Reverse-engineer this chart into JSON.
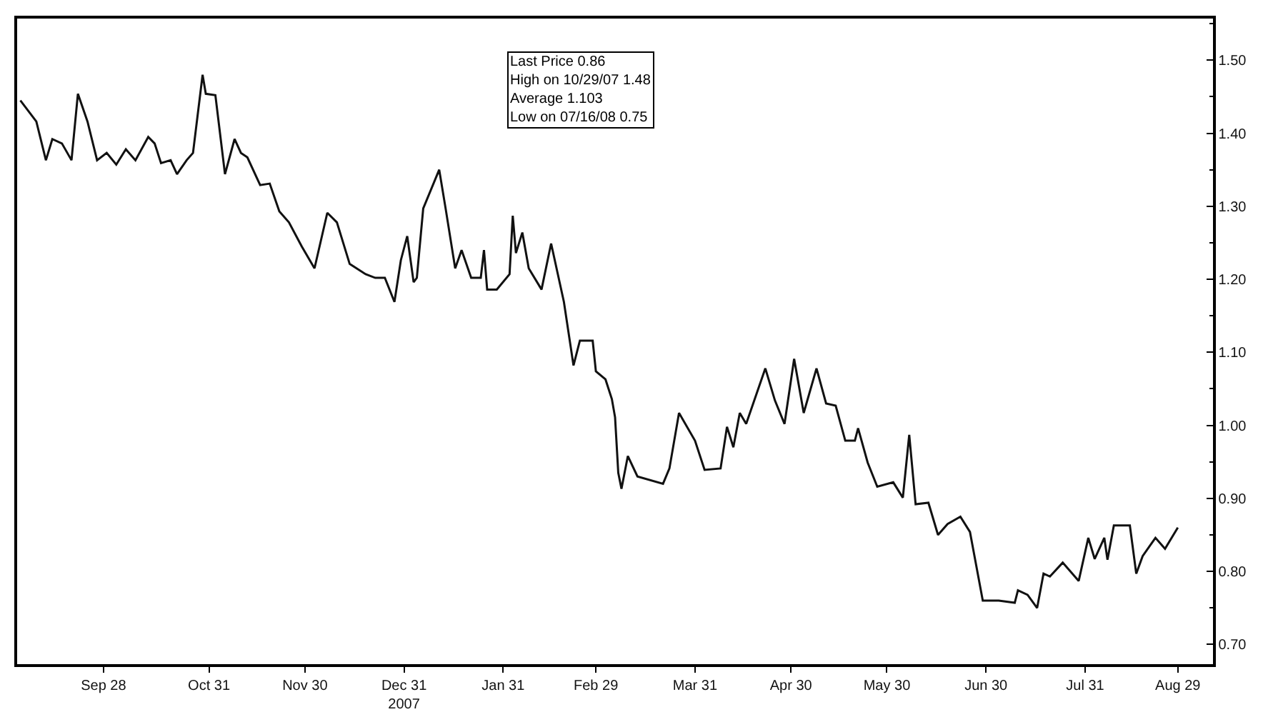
{
  "chart_data": {
    "type": "line",
    "x": [
      "2007-09-02",
      "2007-09-07",
      "2007-09-10",
      "2007-09-12",
      "2007-09-15",
      "2007-09-18",
      "2007-09-20",
      "2007-09-23",
      "2007-09-26",
      "2007-09-29",
      "2007-10-02",
      "2007-10-05",
      "2007-10-08",
      "2007-10-12",
      "2007-10-14",
      "2007-10-16",
      "2007-10-19",
      "2007-10-21",
      "2007-10-24",
      "2007-10-26",
      "2007-10-29",
      "2007-10-30",
      "2007-11-02",
      "2007-11-05",
      "2007-11-08",
      "2007-11-10",
      "2007-11-12",
      "2007-11-16",
      "2007-11-19",
      "2007-11-22",
      "2007-11-25",
      "2007-11-29",
      "2007-12-03",
      "2007-12-07",
      "2007-12-10",
      "2007-12-14",
      "2007-12-19",
      "2007-12-22",
      "2007-12-25",
      "2007-12-28",
      "2007-12-30",
      "2008-01-01",
      "2008-01-03",
      "2008-01-04",
      "2008-01-06",
      "2008-01-11",
      "2008-01-13",
      "2008-01-16",
      "2008-01-18",
      "2008-01-21",
      "2008-01-24",
      "2008-01-25",
      "2008-01-26",
      "2008-01-29",
      "2008-02-02",
      "2008-02-03",
      "2008-02-04",
      "2008-02-06",
      "2008-02-08",
      "2008-02-12",
      "2008-02-15",
      "2008-02-19",
      "2008-02-22",
      "2008-02-24",
      "2008-02-28",
      "2008-02-29",
      "2008-03-03",
      "2008-03-05",
      "2008-03-06",
      "2008-03-07",
      "2008-03-08",
      "2008-03-10",
      "2008-03-13",
      "2008-03-21",
      "2008-03-23",
      "2008-03-26",
      "2008-03-31",
      "2008-04-03",
      "2008-04-08",
      "2008-04-10",
      "2008-04-12",
      "2008-04-14",
      "2008-04-16",
      "2008-04-22",
      "2008-04-25",
      "2008-04-28",
      "2008-05-01",
      "2008-05-04",
      "2008-05-08",
      "2008-05-11",
      "2008-05-14",
      "2008-05-17",
      "2008-05-20",
      "2008-05-21",
      "2008-05-24",
      "2008-05-27",
      "2008-06-01",
      "2008-06-04",
      "2008-06-06",
      "2008-06-08",
      "2008-06-12",
      "2008-06-15",
      "2008-06-18",
      "2008-06-22",
      "2008-06-25",
      "2008-06-29",
      "2008-07-04",
      "2008-07-09",
      "2008-07-10",
      "2008-07-13",
      "2008-07-16",
      "2008-07-18",
      "2008-07-20",
      "2008-07-24",
      "2008-07-29",
      "2008-08-01",
      "2008-08-03",
      "2008-08-06",
      "2008-08-07",
      "2008-08-09",
      "2008-08-14",
      "2008-08-16",
      "2008-08-18",
      "2008-08-22",
      "2008-08-25",
      "2008-08-29"
    ],
    "series": [
      {
        "color": "#111111",
        "values": [
          1.445,
          1.416,
          1.363,
          1.392,
          1.386,
          1.363,
          1.454,
          1.416,
          1.363,
          1.373,
          1.357,
          1.378,
          1.363,
          1.395,
          1.386,
          1.359,
          1.363,
          1.344,
          1.363,
          1.373,
          1.48,
          1.454,
          1.452,
          1.344,
          1.392,
          1.373,
          1.367,
          1.329,
          1.331,
          1.293,
          1.278,
          1.245,
          1.215,
          1.291,
          1.278,
          1.221,
          1.207,
          1.202,
          1.202,
          1.169,
          1.226,
          1.259,
          1.196,
          1.202,
          1.297,
          1.35,
          1.297,
          1.215,
          1.24,
          1.202,
          1.202,
          1.24,
          1.186,
          1.186,
          1.207,
          1.287,
          1.236,
          1.264,
          1.215,
          1.186,
          1.249,
          1.169,
          1.082,
          1.116,
          1.116,
          1.074,
          1.063,
          1.036,
          1.011,
          0.935,
          0.913,
          0.958,
          0.93,
          0.92,
          0.941,
          1.017,
          0.979,
          0.939,
          0.941,
          0.998,
          0.97,
          1.017,
          1.002,
          1.078,
          1.034,
          1.002,
          1.091,
          1.017,
          1.078,
          1.03,
          1.027,
          0.979,
          0.979,
          0.996,
          0.949,
          0.916,
          0.922,
          0.901,
          0.987,
          0.892,
          0.894,
          0.85,
          0.865,
          0.875,
          0.854,
          0.76,
          0.76,
          0.757,
          0.774,
          0.768,
          0.75,
          0.797,
          0.793,
          0.812,
          0.787,
          0.846,
          0.817,
          0.846,
          0.816,
          0.863,
          0.863,
          0.797,
          0.821,
          0.846,
          0.831,
          0.86
        ]
      }
    ],
    "xlim": [
      "2007-09-01",
      "2008-09-09"
    ],
    "xticks": [
      {
        "value": "2007-09-28",
        "label": "Sep 28"
      },
      {
        "value": "2007-10-31",
        "label": "Oct 31"
      },
      {
        "value": "2007-11-30",
        "label": "Nov 30"
      },
      {
        "value": "2007-12-31",
        "label": "Dec 31\n2007"
      },
      {
        "value": "2008-01-31",
        "label": "Jan 31"
      },
      {
        "value": "2008-02-29",
        "label": "Feb 29"
      },
      {
        "value": "2008-03-31",
        "label": "Mar 31"
      },
      {
        "value": "2008-04-30",
        "label": "Apr 30"
      },
      {
        "value": "2008-05-30",
        "label": "May 30"
      },
      {
        "value": "2008-06-30",
        "label": "Jun 30"
      },
      {
        "value": "2008-07-31",
        "label": "Jul 31"
      },
      {
        "value": "2008-08-29",
        "label": "Aug 29"
      }
    ],
    "ylim": [
      0.673,
      1.557
    ],
    "yticks": [
      {
        "value": 0.7,
        "label": "0.70"
      },
      {
        "value": 0.8,
        "label": "0.80"
      },
      {
        "value": 0.9,
        "label": "0.90"
      },
      {
        "value": 1.0,
        "label": "1.00"
      },
      {
        "value": 1.1,
        "label": "1.10"
      },
      {
        "value": 1.2,
        "label": "1.20"
      },
      {
        "value": 1.3,
        "label": "1.30"
      },
      {
        "value": 1.4,
        "label": "1.40"
      },
      {
        "value": 1.5,
        "label": "1.50"
      }
    ],
    "annotations": [
      "Last Price 0.86",
      "High on 10/29/07 1.48",
      "Average 1.103",
      "Low on 07/16/08 0.75"
    ],
    "marker": "none",
    "line_style": "solid"
  }
}
